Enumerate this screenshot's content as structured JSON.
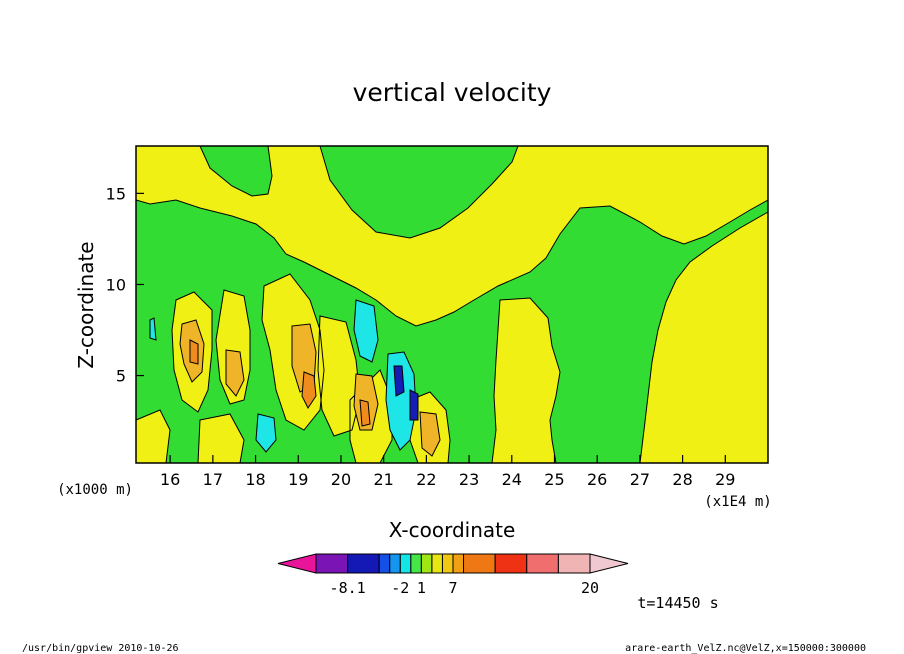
{
  "chart_data": {
    "type": "heatmap",
    "title": "vertical velocity",
    "xlabel": "X-coordinate",
    "ylabel": "Z-coordinate",
    "x_unit": "(x1E4 m)",
    "y_unit": "(x1000 m)",
    "xlim": [
      15.2,
      30
    ],
    "ylim": [
      0.2,
      17.6
    ],
    "x_ticks": [
      16,
      17,
      18,
      19,
      20,
      21,
      22,
      23,
      24,
      25,
      26,
      27,
      28,
      29
    ],
    "y_ticks": [
      5,
      10,
      15
    ],
    "colorbar": {
      "tick_labels": [
        "-8.1",
        "-2",
        "1",
        "7",
        "20"
      ],
      "colors": [
        "#e8159a",
        "#7a14b4",
        "#1418b4",
        "#1450e6",
        "#1496f0",
        "#14e6e6",
        "#46e646",
        "#a0e614",
        "#e6e614",
        "#f0c814",
        "#f0a014",
        "#f07814",
        "#f03214",
        "#f06e6e",
        "#f0b4b4",
        "#f0c8d2"
      ]
    },
    "fields": {
      "background": "#32dc32",
      "positive": "#f0f014",
      "moderate": "#f0b428",
      "strong": "#f08c1e",
      "negative": "#1ee6e6",
      "strong_negative": "#141eb4"
    },
    "time_label": "t=14450 s",
    "footer_left": "/usr/bin/gpview   2010-10-26",
    "footer_right": "arare-earth_VelZ.nc@VelZ,x=150000:300000"
  }
}
